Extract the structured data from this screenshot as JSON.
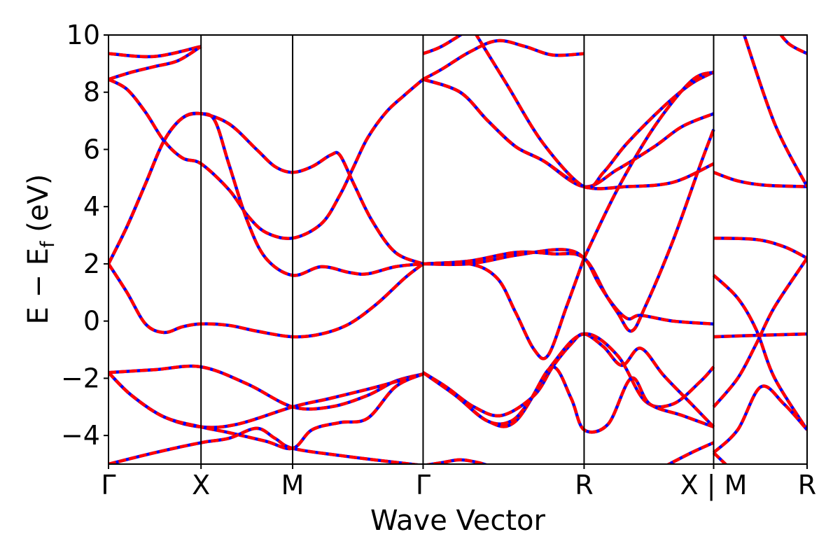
{
  "chart_data": {
    "type": "line",
    "title": "",
    "xlabel": "Wave Vector",
    "ylabel": {
      "main": "E − E",
      "sub": "f",
      "unit": " (eV)"
    },
    "ylim": [
      -5,
      10
    ],
    "yticks": [
      -4,
      -2,
      0,
      2,
      4,
      6,
      8,
      10
    ],
    "ytick_labels": [
      "−4",
      "−2",
      "0",
      "2",
      "4",
      "6",
      "8",
      "10"
    ],
    "xlim": [
      0,
      7.55
    ],
    "kpoints": [
      {
        "x": 0.0,
        "label": "Γ"
      },
      {
        "x": 1.0,
        "label": "X"
      },
      {
        "x": 1.99,
        "label": "M"
      },
      {
        "x": 3.4,
        "label": "Γ"
      },
      {
        "x": 5.14,
        "label": "R"
      },
      {
        "x": 6.54,
        "label": "X | M"
      },
      {
        "x": 7.55,
        "label": "R"
      }
    ],
    "grid": false,
    "legend": "none",
    "colors": {
      "series_a": "#0000ff",
      "series_b": "#ff0000",
      "frame": "#000000"
    },
    "series_styles": [
      {
        "color": "#0000ff",
        "style": "solid"
      },
      {
        "color": "#ff0000",
        "style": "dashed"
      }
    ],
    "bands": [
      [
        [
          0,
          9.35
        ],
        [
          0.5,
          9.25
        ],
        [
          1.0,
          9.6
        ]
      ],
      [
        [
          0,
          8.45
        ],
        [
          0.25,
          8.7
        ],
        [
          0.5,
          8.9
        ],
        [
          0.75,
          9.1
        ],
        [
          1.0,
          9.6
        ]
      ],
      [
        [
          0,
          8.45
        ],
        [
          0.2,
          8.1
        ],
        [
          0.4,
          7.3
        ],
        [
          0.6,
          6.3
        ],
        [
          0.8,
          5.7
        ],
        [
          1.0,
          5.5
        ],
        [
          1.3,
          4.6
        ],
        [
          1.5,
          3.7
        ],
        [
          1.7,
          3.1
        ],
        [
          1.99,
          2.9
        ],
        [
          2.3,
          3.4
        ],
        [
          2.5,
          4.4
        ],
        [
          2.65,
          5.4
        ],
        [
          2.8,
          6.4
        ],
        [
          3.0,
          7.3
        ],
        [
          3.2,
          7.9
        ],
        [
          3.4,
          8.45
        ]
      ],
      [
        [
          0,
          2.0
        ],
        [
          0.2,
          3.3
        ],
        [
          0.4,
          4.8
        ],
        [
          0.6,
          6.3
        ],
        [
          0.8,
          7.1
        ],
        [
          1.0,
          7.25
        ],
        [
          1.3,
          6.9
        ],
        [
          1.6,
          6.0
        ],
        [
          1.8,
          5.4
        ],
        [
          1.99,
          5.2
        ],
        [
          2.2,
          5.4
        ],
        [
          2.4,
          5.8
        ],
        [
          2.5,
          5.8
        ],
        [
          2.65,
          4.8
        ],
        [
          2.85,
          3.5
        ],
        [
          3.1,
          2.4
        ],
        [
          3.4,
          2.0
        ]
      ],
      [
        [
          0,
          2.0
        ],
        [
          0.2,
          3.3
        ],
        [
          0.4,
          4.8
        ],
        [
          0.6,
          6.3
        ],
        [
          0.8,
          7.1
        ],
        [
          1.0,
          7.25
        ],
        [
          1.15,
          7.0
        ],
        [
          1.3,
          5.5
        ],
        [
          1.5,
          3.5
        ],
        [
          1.7,
          2.2
        ],
        [
          1.99,
          1.6
        ],
        [
          2.3,
          1.9
        ],
        [
          2.6,
          1.7
        ],
        [
          2.8,
          1.65
        ],
        [
          3.1,
          1.9
        ],
        [
          3.4,
          2.0
        ]
      ],
      [
        [
          0,
          2.0
        ],
        [
          0.2,
          1.0
        ],
        [
          0.4,
          -0.1
        ],
        [
          0.6,
          -0.4
        ],
        [
          0.8,
          -0.2
        ],
        [
          1.0,
          -0.1
        ],
        [
          1.3,
          -0.15
        ],
        [
          1.6,
          -0.35
        ],
        [
          1.99,
          -0.55
        ],
        [
          2.3,
          -0.45
        ],
        [
          2.6,
          -0.1
        ],
        [
          2.9,
          0.6
        ],
        [
          3.2,
          1.5
        ],
        [
          3.4,
          2.0
        ]
      ],
      [
        [
          0,
          -1.8
        ],
        [
          0.5,
          -1.7
        ],
        [
          1.0,
          -1.6
        ],
        [
          1.5,
          -2.2
        ],
        [
          1.99,
          -3.0
        ],
        [
          2.4,
          -3.0
        ],
        [
          2.8,
          -2.6
        ],
        [
          3.1,
          -2.1
        ],
        [
          3.4,
          -1.85
        ]
      ],
      [
        [
          0,
          -1.8
        ],
        [
          0.25,
          -2.6
        ],
        [
          0.6,
          -3.35
        ],
        [
          1.0,
          -3.7
        ],
        [
          1.4,
          -3.6
        ],
        [
          1.99,
          -3.0
        ],
        [
          2.4,
          -2.7
        ],
        [
          2.9,
          -2.3
        ],
        [
          3.4,
          -1.85
        ]
      ],
      [
        [
          0,
          -1.8
        ],
        [
          0.25,
          -2.6
        ],
        [
          0.6,
          -3.35
        ],
        [
          1.0,
          -3.7
        ],
        [
          1.3,
          -3.9
        ],
        [
          1.7,
          -4.2
        ],
        [
          1.99,
          -4.45
        ],
        [
          2.2,
          -3.8
        ],
        [
          2.5,
          -3.55
        ],
        [
          2.8,
          -3.4
        ],
        [
          3.1,
          -2.3
        ],
        [
          3.4,
          -1.85
        ]
      ],
      [
        [
          0,
          -5.0
        ],
        [
          0.5,
          -4.6
        ],
        [
          1.0,
          -4.25
        ],
        [
          1.3,
          -4.1
        ],
        [
          1.6,
          -3.75
        ],
        [
          1.8,
          -4.1
        ],
        [
          1.99,
          -4.45
        ],
        [
          2.5,
          -4.7
        ],
        [
          3.0,
          -4.9
        ],
        [
          3.4,
          -5.05
        ]
      ],
      [
        [
          3.4,
          8.45
        ],
        [
          3.8,
          8.0
        ],
        [
          4.1,
          7.0
        ],
        [
          4.4,
          6.1
        ],
        [
          4.7,
          5.6
        ],
        [
          5.14,
          4.7
        ],
        [
          5.5,
          5.3
        ],
        [
          5.9,
          6.1
        ],
        [
          6.2,
          6.8
        ],
        [
          6.54,
          7.25
        ]
      ],
      [
        [
          3.4,
          8.45
        ],
        [
          3.8,
          8.0
        ],
        [
          4.1,
          7.0
        ],
        [
          4.4,
          6.1
        ],
        [
          4.7,
          5.6
        ],
        [
          5.14,
          4.7
        ],
        [
          5.6,
          4.7
        ],
        [
          6.1,
          4.85
        ],
        [
          6.54,
          5.5
        ]
      ],
      [
        [
          3.4,
          8.45
        ],
        [
          3.6,
          8.8
        ],
        [
          3.9,
          9.4
        ],
        [
          4.2,
          9.8
        ],
        [
          4.5,
          9.6
        ],
        [
          4.8,
          9.3
        ],
        [
          5.14,
          9.35
        ]
      ],
      [
        [
          3.4,
          9.35
        ],
        [
          3.6,
          9.6
        ],
        [
          3.9,
          10.2
        ]
      ],
      [
        [
          3.9,
          10.4
        ],
        [
          4.3,
          8.3
        ],
        [
          4.7,
          6.2
        ],
        [
          5.14,
          4.7
        ],
        [
          5.35,
          5.2
        ],
        [
          5.6,
          6.2
        ],
        [
          6.0,
          7.5
        ],
        [
          6.3,
          8.3
        ],
        [
          6.54,
          8.7
        ]
      ],
      [
        [
          3.4,
          2.0
        ],
        [
          3.9,
          2.1
        ],
        [
          4.4,
          2.4
        ],
        [
          4.8,
          2.35
        ],
        [
          5.14,
          2.2
        ],
        [
          5.4,
          0.8
        ],
        [
          5.6,
          0.1
        ],
        [
          5.75,
          0.2
        ],
        [
          6.1,
          0.0
        ],
        [
          6.54,
          -0.1
        ]
      ],
      [
        [
          3.4,
          2.0
        ],
        [
          3.9,
          2.0
        ],
        [
          4.2,
          1.5
        ],
        [
          4.4,
          0.3
        ],
        [
          4.6,
          -1.0
        ],
        [
          4.75,
          -1.2
        ],
        [
          4.95,
          0.5
        ],
        [
          5.14,
          2.2
        ]
      ],
      [
        [
          3.4,
          2.0
        ],
        [
          3.9,
          2.0
        ],
        [
          4.4,
          2.3
        ],
        [
          4.9,
          2.5
        ],
        [
          5.14,
          2.2
        ],
        [
          5.3,
          1.3
        ],
        [
          5.5,
          0.3
        ],
        [
          5.65,
          -0.35
        ],
        [
          5.8,
          0.5
        ],
        [
          6.1,
          2.8
        ],
        [
          6.4,
          5.5
        ],
        [
          6.54,
          6.7
        ]
      ],
      [
        [
          5.14,
          2.2
        ],
        [
          5.5,
          4.6
        ],
        [
          5.9,
          6.8
        ],
        [
          6.3,
          8.4
        ],
        [
          6.54,
          8.7
        ]
      ],
      [
        [
          3.4,
          -1.8
        ],
        [
          3.65,
          -2.3
        ],
        [
          3.95,
          -3.0
        ],
        [
          4.25,
          -3.3
        ],
        [
          4.6,
          -2.6
        ],
        [
          4.8,
          -1.6
        ],
        [
          5.0,
          -0.8
        ],
        [
          5.14,
          -0.45
        ],
        [
          5.35,
          -0.9
        ],
        [
          5.55,
          -1.55
        ],
        [
          5.75,
          -0.95
        ],
        [
          6.0,
          -1.9
        ],
        [
          6.3,
          -2.9
        ],
        [
          6.54,
          -3.7
        ]
      ],
      [
        [
          3.4,
          -1.8
        ],
        [
          3.75,
          -2.6
        ],
        [
          4.1,
          -3.5
        ],
        [
          4.4,
          -3.5
        ],
        [
          4.8,
          -1.5
        ],
        [
          5.14,
          -0.45
        ],
        [
          5.5,
          -1.2
        ],
        [
          5.8,
          -2.8
        ],
        [
          6.1,
          -2.9
        ],
        [
          6.4,
          -2.1
        ],
        [
          6.54,
          -1.6
        ]
      ],
      [
        [
          3.4,
          -1.8
        ],
        [
          3.75,
          -2.6
        ],
        [
          4.1,
          -3.5
        ],
        [
          4.35,
          -3.5
        ],
        [
          4.55,
          -2.8
        ],
        [
          4.8,
          -1.6
        ],
        [
          5.0,
          -2.7
        ],
        [
          5.14,
          -3.8
        ],
        [
          5.4,
          -3.6
        ],
        [
          5.65,
          -2.0
        ],
        [
          5.85,
          -2.9
        ],
        [
          6.2,
          -3.3
        ],
        [
          6.54,
          -3.7
        ]
      ],
      [
        [
          3.4,
          -5.05
        ],
        [
          3.6,
          -4.95
        ],
        [
          3.8,
          -4.85
        ],
        [
          4.0,
          -4.95
        ],
        [
          4.15,
          -5.1
        ]
      ],
      [
        [
          6.0,
          -5.1
        ],
        [
          6.3,
          -4.6
        ],
        [
          6.54,
          -4.25
        ]
      ],
      [
        [
          6.54,
          5.2
        ],
        [
          6.8,
          4.9
        ],
        [
          7.1,
          4.75
        ],
        [
          7.55,
          4.7
        ]
      ],
      [
        [
          6.54,
          2.9
        ],
        [
          7.0,
          2.85
        ],
        [
          7.3,
          2.6
        ],
        [
          7.55,
          2.2
        ]
      ],
      [
        [
          6.54,
          1.6
        ],
        [
          6.8,
          0.8
        ],
        [
          7.0,
          -0.3
        ],
        [
          7.2,
          -2.0
        ],
        [
          7.55,
          -3.8
        ]
      ],
      [
        [
          6.54,
          -0.55
        ],
        [
          7.0,
          -0.5
        ],
        [
          7.55,
          -0.45
        ]
      ],
      [
        [
          6.54,
          -3.0
        ],
        [
          6.8,
          -2.0
        ],
        [
          7.0,
          -0.8
        ],
        [
          7.2,
          0.5
        ],
        [
          7.55,
          2.2
        ]
      ],
      [
        [
          6.54,
          -4.6
        ],
        [
          6.8,
          -3.8
        ],
        [
          7.05,
          -2.3
        ],
        [
          7.3,
          -2.9
        ],
        [
          7.55,
          -3.8
        ]
      ],
      [
        [
          6.54,
          -4.6
        ],
        [
          6.7,
          -5.1
        ]
      ],
      [
        [
          6.85,
          10.2
        ],
        [
          7.2,
          6.9
        ],
        [
          7.55,
          4.7
        ]
      ],
      [
        [
          7.2,
          10.3
        ],
        [
          7.35,
          9.7
        ],
        [
          7.55,
          9.35
        ]
      ]
    ]
  }
}
